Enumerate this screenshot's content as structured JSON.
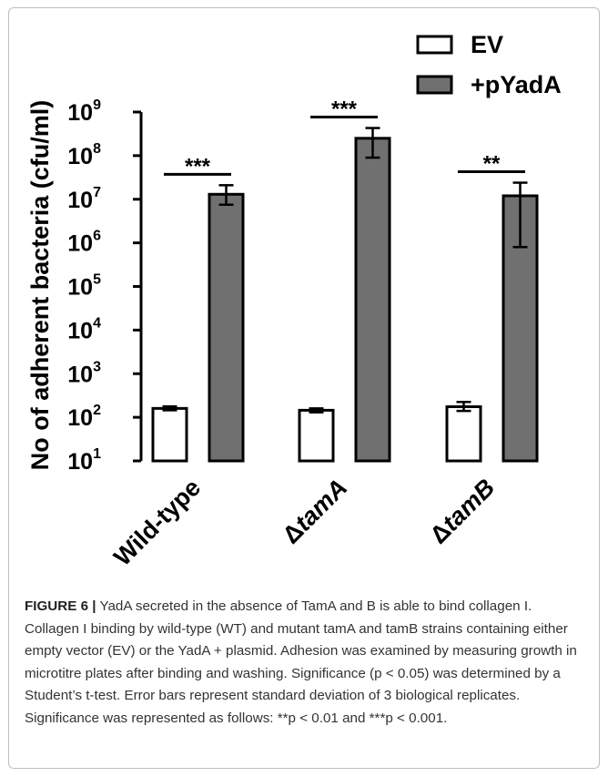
{
  "chart_data": {
    "type": "bar",
    "ylabel": "No of adherent bacteria (cfu/ml)",
    "yscale": "log",
    "ylim": [
      10,
      1000000000
    ],
    "yticks": [
      {
        "value": 10,
        "base": "10",
        "exp": "1"
      },
      {
        "value": 100,
        "base": "10",
        "exp": "2"
      },
      {
        "value": 1000,
        "base": "10",
        "exp": "3"
      },
      {
        "value": 10000,
        "base": "10",
        "exp": "4"
      },
      {
        "value": 100000,
        "base": "10",
        "exp": "5"
      },
      {
        "value": 1000000,
        "base": "10",
        "exp": "6"
      },
      {
        "value": 10000000,
        "base": "10",
        "exp": "7"
      },
      {
        "value": 100000000,
        "base": "10",
        "exp": "8"
      },
      {
        "value": 1000000000,
        "base": "10",
        "exp": "9"
      }
    ],
    "categories": [
      {
        "prefix": "",
        "label": "Wild-type",
        "italic": false
      },
      {
        "prefix": "Δ",
        "label": "tamA",
        "italic": true
      },
      {
        "prefix": "Δ",
        "label": "tamB",
        "italic": true
      }
    ],
    "series": [
      {
        "name": "EV",
        "color": "#ffffff",
        "values": [
          160,
          145,
          175
        ],
        "err_low": [
          145,
          130,
          140
        ],
        "err_high": [
          178,
          160,
          225
        ]
      },
      {
        "name": "+pYadA",
        "color": "#707070",
        "values": [
          13000000,
          250000000,
          12000000
        ],
        "err_low": [
          7500000,
          90000000,
          800000
        ],
        "err_high": [
          21000000,
          430000000,
          24000000
        ]
      }
    ],
    "significance": [
      "***",
      "***",
      "**"
    ],
    "legend_position": "top-right",
    "grid": false
  },
  "caption": {
    "label": "FIGURE 6 |",
    "text": "YadA secreted in the absence of TamA and B is able to bind collagen I. Collagen I binding by wild-type (WT) and mutant tamA and tamB strains containing either empty vector (EV) or the YadA + plasmid. Adhesion was examined by measuring growth in microtitre plates after binding and washing. Significance (p < 0.05) was determined by a Student’s t-test. Error bars represent standard deviation of 3 biological replicates. Significance was represented as follows: **p < 0.01 and ***p < 0.001."
  }
}
